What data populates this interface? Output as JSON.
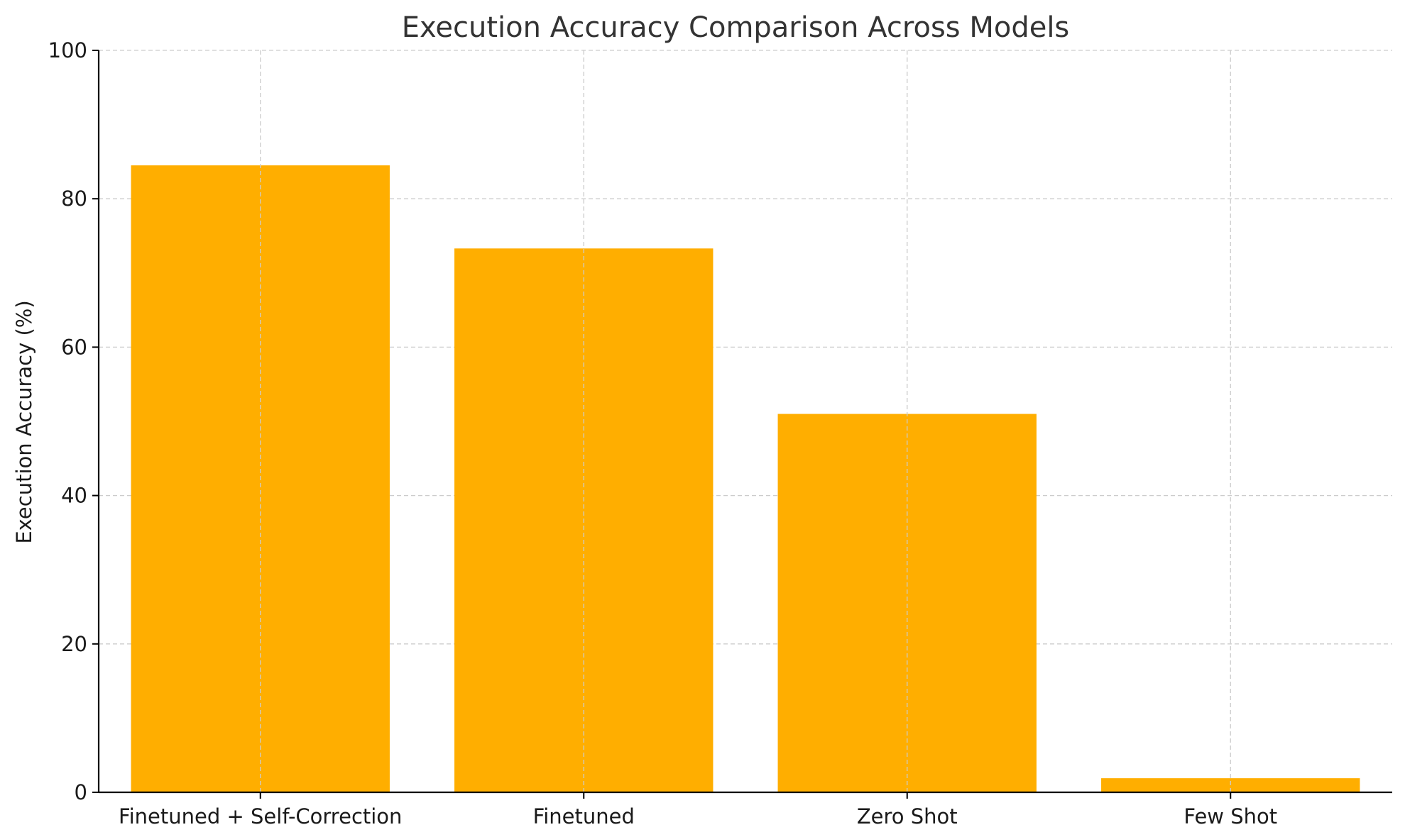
{
  "chart_data": {
    "type": "bar",
    "title": "Execution Accuracy Comparison Across Models",
    "xlabel": "",
    "ylabel": "Execution Accuracy (%)",
    "categories": [
      "Finetuned + Self-Correction",
      "Finetuned",
      "Zero Shot",
      "Few Shot"
    ],
    "values": [
      84.5,
      73.3,
      51.0,
      1.9
    ],
    "ylim": [
      0,
      100
    ],
    "yticks": [
      "0",
      "20",
      "40",
      "60",
      "80",
      "100"
    ],
    "grid": true,
    "bar_color": "#FFAE00",
    "grid_color": "#cccccc"
  }
}
